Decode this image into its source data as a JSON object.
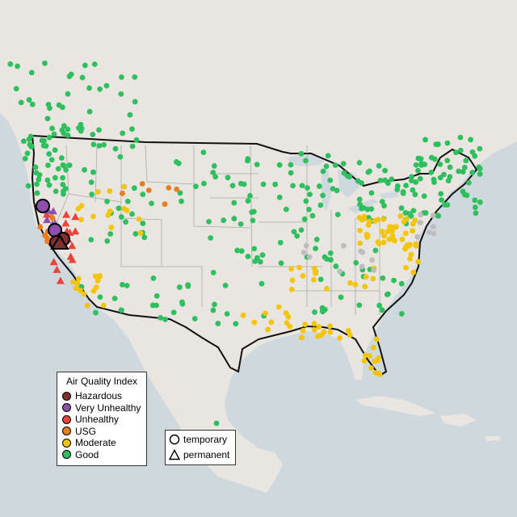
{
  "legend_aqi": {
    "title": "Air Quality Index",
    "items": [
      {
        "label": "Hazardous",
        "color": "#7e2f2f"
      },
      {
        "label": "Very Unhealthy",
        "color": "#8e4fa8"
      },
      {
        "label": "Unhealthy",
        "color": "#e8443a"
      },
      {
        "label": "USG",
        "color": "#e87e1c"
      },
      {
        "label": "Moderate",
        "color": "#f2c40a"
      },
      {
        "label": "Good",
        "color": "#2fbf5e"
      }
    ]
  },
  "legend_type": {
    "items": [
      {
        "label": "temporary",
        "shape": "circle"
      },
      {
        "label": "permanent",
        "shape": "triangle"
      }
    ]
  },
  "colors": {
    "land": "#e9e6e1",
    "water": "#cfd8dc",
    "border": "#111111",
    "state_border": "#a9a9a9",
    "inactive": "#bdbdbd"
  }
}
